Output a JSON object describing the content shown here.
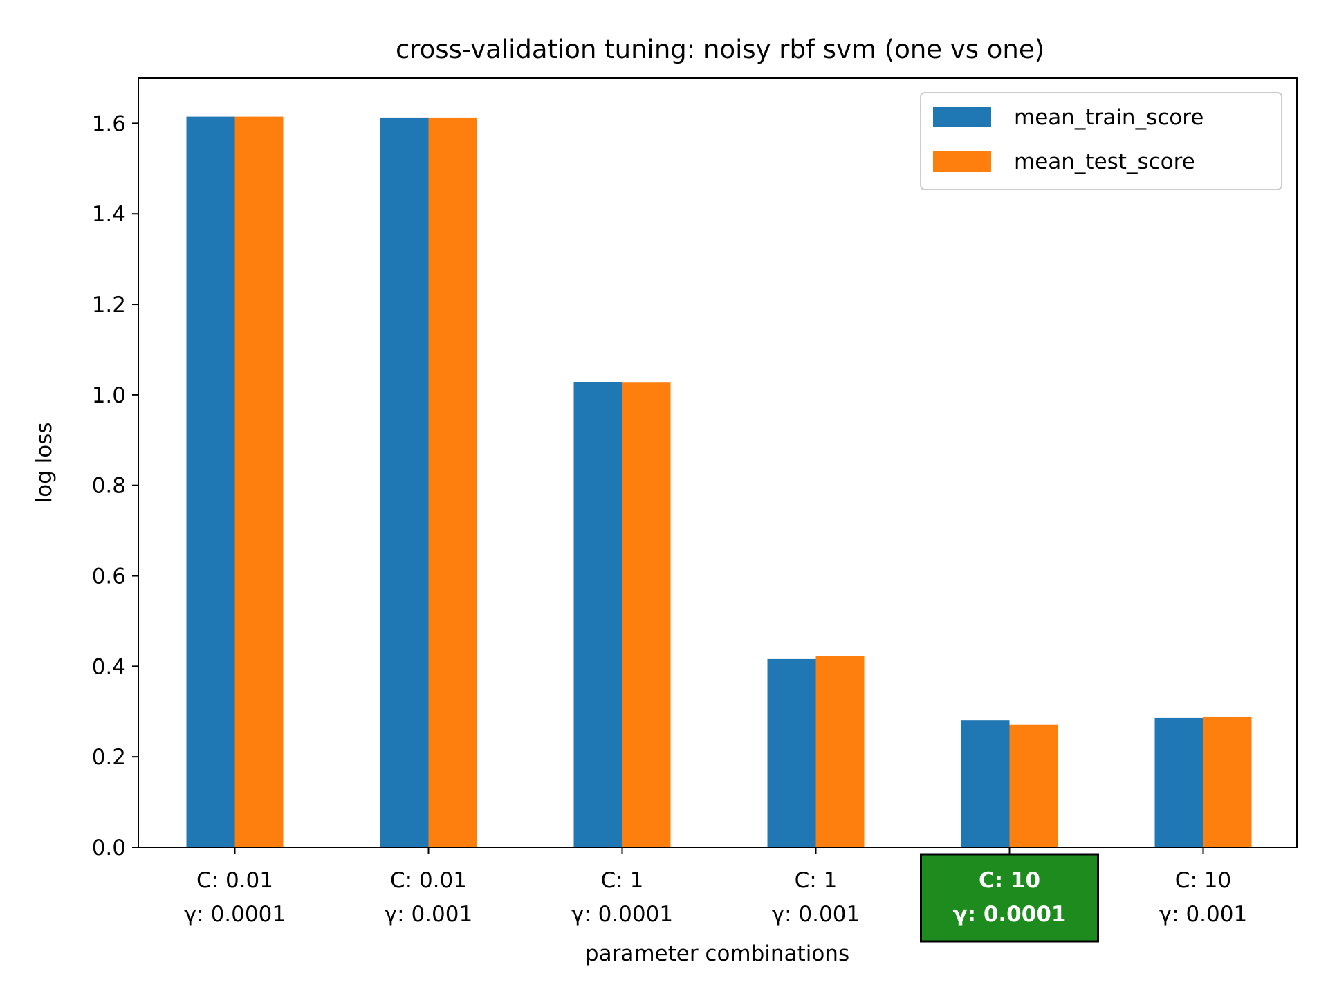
{
  "chart_data": {
    "type": "bar",
    "title": "cross-validation tuning: noisy rbf svm (one vs one)",
    "xlabel": "parameter combinations",
    "ylabel": "log loss",
    "ylim": [
      0,
      1.7
    ],
    "yticks": [
      "0.0",
      "0.2",
      "0.4",
      "0.6",
      "0.8",
      "1.0",
      "1.2",
      "1.4",
      "1.6"
    ],
    "categories": [
      {
        "line1": "C: 0.01",
        "line2": "γ: 0.0001",
        "highlighted": false
      },
      {
        "line1": "C: 0.01",
        "line2": "γ: 0.001",
        "highlighted": false
      },
      {
        "line1": "C: 1",
        "line2": "γ: 0.0001",
        "highlighted": false
      },
      {
        "line1": "C: 1",
        "line2": "γ: 0.001",
        "highlighted": false
      },
      {
        "line1": "C: 10",
        "line2": "γ: 0.0001",
        "highlighted": true
      },
      {
        "line1": "C: 10",
        "line2": "γ: 0.001",
        "highlighted": false
      }
    ],
    "series": [
      {
        "name": "mean_train_score",
        "color": "#1f77b4",
        "values": [
          1.615,
          1.613,
          1.028,
          0.416,
          0.281,
          0.286
        ]
      },
      {
        "name": "mean_test_score",
        "color": "#ff7f0e",
        "values": [
          1.615,
          1.613,
          1.027,
          0.422,
          0.271,
          0.289
        ]
      }
    ],
    "highlight_color": "#1e8b1e",
    "legend_position": "upper right",
    "grid": false
  }
}
